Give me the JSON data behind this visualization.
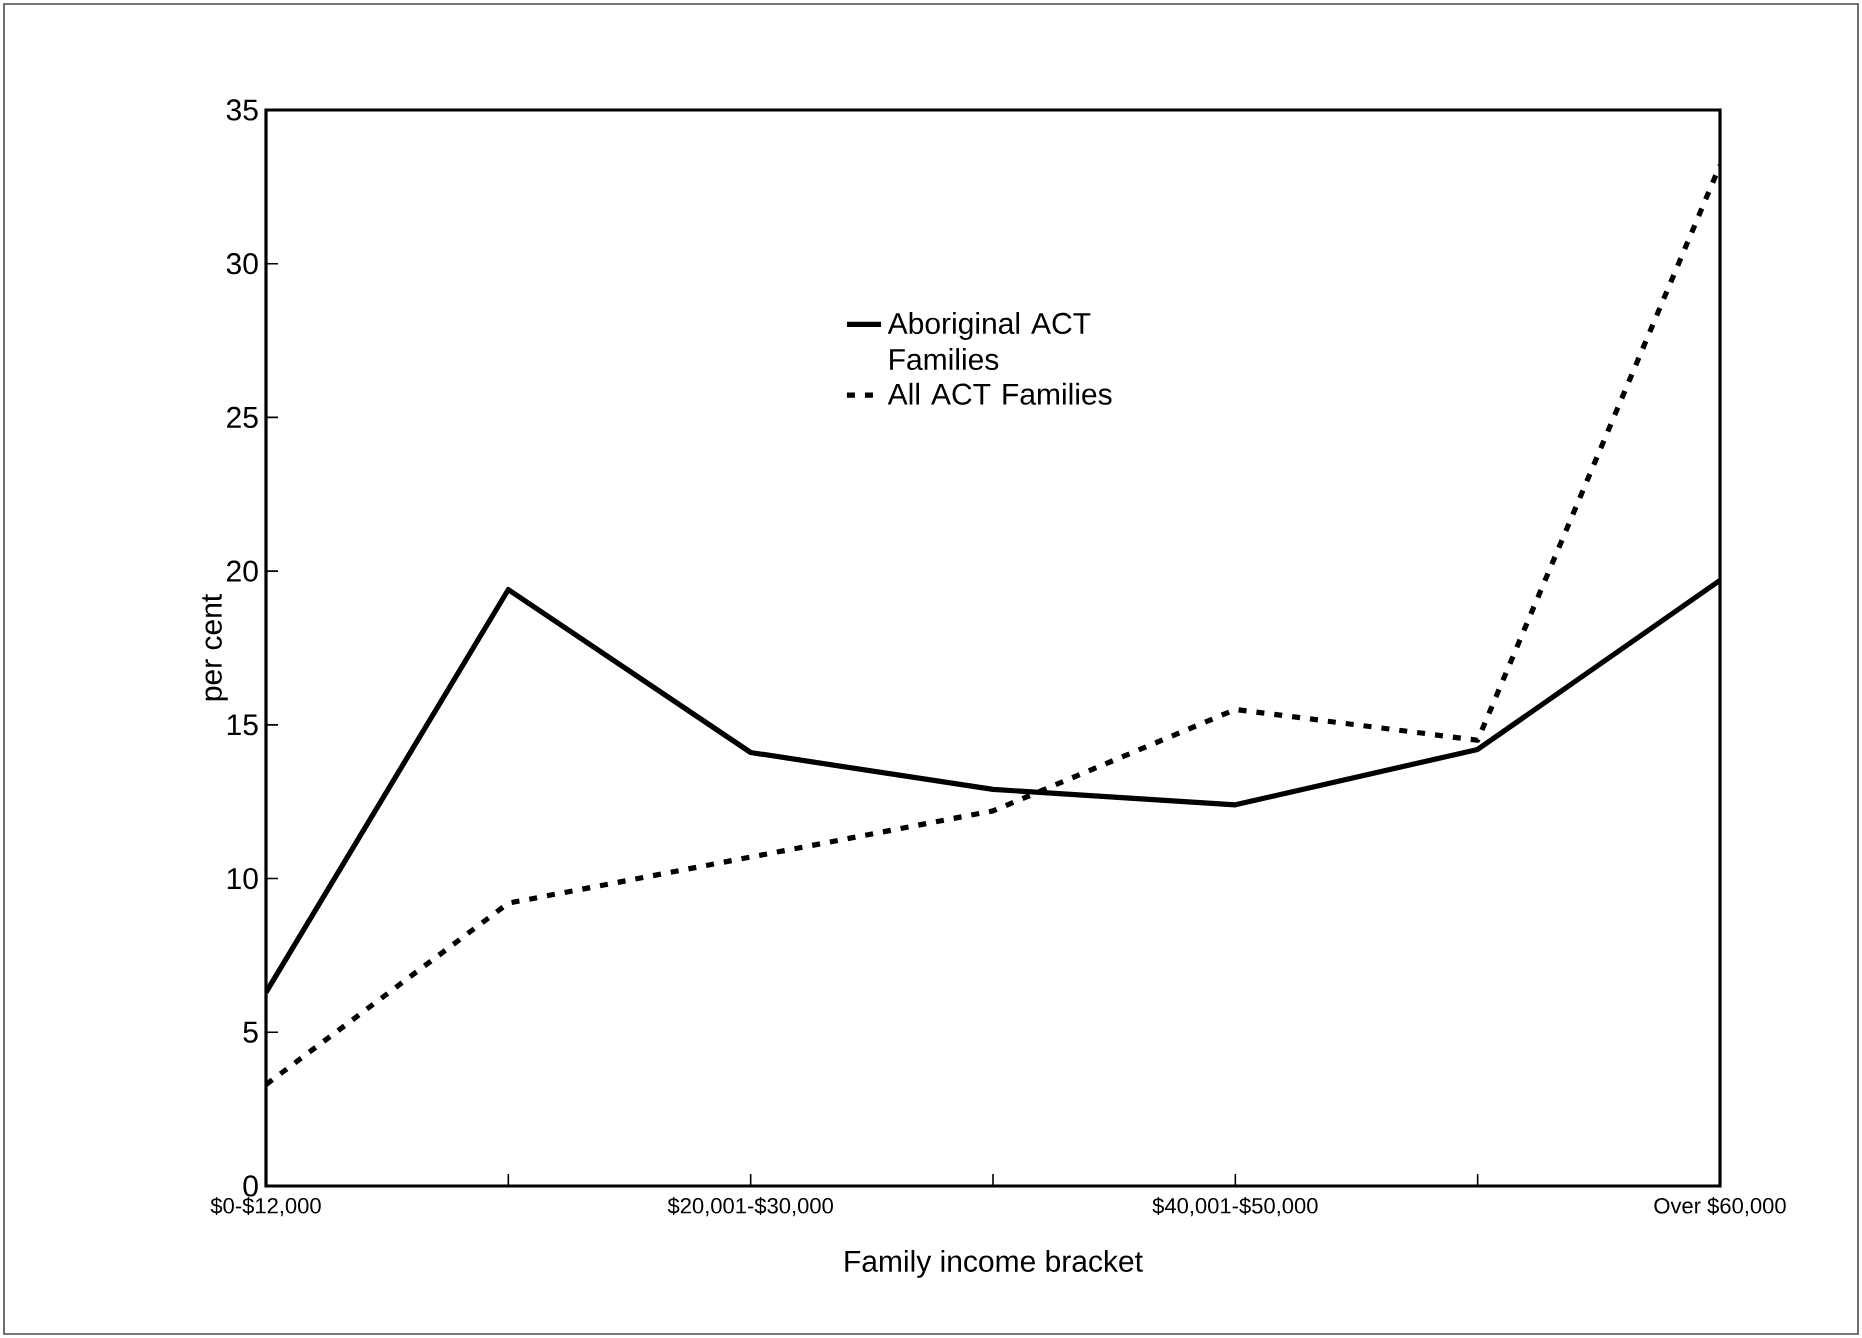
{
  "chart_data": {
    "type": "line",
    "xlabel": "Family income bracket",
    "ylabel": "per cent",
    "categories": [
      "$0-$12,000",
      null,
      "$20,001-$30,000",
      null,
      "$40,001-$50,000",
      null,
      "Over $60,000"
    ],
    "series": [
      {
        "name": "Aboriginal ACT Families",
        "color": "#000000",
        "line_style": "solid",
        "values": [
          6.3,
          19.4,
          14.1,
          12.9,
          12.4,
          14.2,
          19.7
        ]
      },
      {
        "name": "All ACT Families",
        "color": "#000000",
        "line_style": "dotted",
        "values": [
          3.3,
          9.2,
          10.7,
          12.2,
          15.5,
          14.5,
          33.2
        ]
      }
    ],
    "ylim": [
      0,
      35
    ],
    "yticks": [
      0,
      5,
      10,
      15,
      20,
      25,
      30,
      35
    ],
    "grid": false,
    "legend": "top",
    "marker": "none"
  }
}
